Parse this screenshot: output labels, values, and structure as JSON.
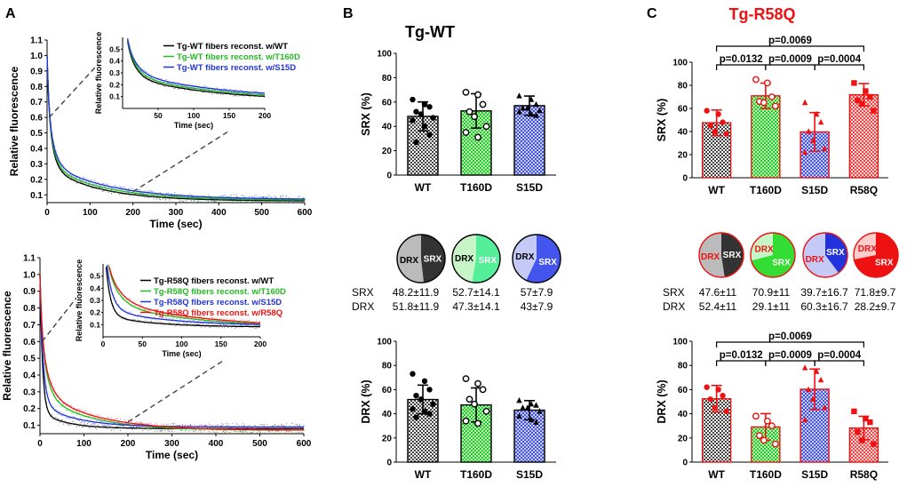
{
  "panels": {
    "a": {
      "letter": "A"
    },
    "b": {
      "letter": "B",
      "title": "Tg-WT"
    },
    "c": {
      "letter": "C",
      "title": "Tg-R58Q"
    }
  },
  "colors": {
    "wt": "#000000",
    "t160d": "#22bb22",
    "s15d": "#2233dd",
    "r58q": "#ee1111",
    "wt_fill": "#888888",
    "t160d_fill": "#66ee66",
    "s15d_fill": "#6677ee",
    "r58q_fill": "#ee6666"
  },
  "pie_labels": {
    "srx": "SRX",
    "drx": "DRX"
  },
  "table_row_labels": {
    "srx": "SRX",
    "drx": "DRX"
  },
  "tables": {
    "b": {
      "srx": [
        "48.2±11.9",
        "52.7±14.1",
        "57±7.9"
      ],
      "drx": [
        "51.8±11.9",
        "47.3±14.1",
        "43±7.9"
      ]
    },
    "c": {
      "srx": [
        "47.6±11",
        "70.9±11",
        "39.7±16.7",
        "71.8±9.7"
      ],
      "drx": [
        "52.4±11",
        "29.1±11",
        "60.3±16.7",
        "28.2±9.7"
      ]
    }
  },
  "chart_data": [
    {
      "id": "A-top",
      "type": "line",
      "title": "",
      "xlabel": "Time (sec)",
      "ylabel": "Relative fluorescence",
      "xlim": [
        0,
        600
      ],
      "ylim": [
        0.05,
        1.1
      ],
      "xticks": [
        0,
        100,
        200,
        300,
        400,
        500,
        600
      ],
      "yticks": [
        0.1,
        0.2,
        0.3,
        0.4,
        0.5,
        0.6,
        0.7,
        0.8,
        0.9,
        1.0,
        1.1
      ],
      "series": [
        {
          "name": "Tg-WT fibers reconst. w/WT",
          "color": "#000000",
          "plateau": 0.06,
          "fast_amp": 0.45,
          "fast_tau": 12,
          "slow_tau": 120
        },
        {
          "name": "Tg-WT fibers reconst. w/T160D",
          "color": "#22bb22",
          "plateau": 0.065,
          "fast_amp": 0.43,
          "fast_tau": 13,
          "slow_tau": 130
        },
        {
          "name": "Tg-WT fibers reconst. w/S15D",
          "color": "#2233dd",
          "plateau": 0.07,
          "fast_amp": 0.4,
          "fast_tau": 14,
          "slow_tau": 140
        }
      ],
      "inset": {
        "xlabel": "Time (sec)",
        "ylabel": "Relative fluorescence",
        "xlim": [
          0,
          200
        ],
        "ylim": [
          0,
          0.6
        ],
        "xticks": [
          50,
          100,
          150,
          200
        ],
        "yticks": [
          0.1,
          0.2,
          0.3,
          0.4,
          0.5
        ]
      }
    },
    {
      "id": "A-bottom",
      "type": "line",
      "title": "",
      "xlabel": "Time (sec)",
      "ylabel": "Relative fluorescence",
      "xlim": [
        0,
        600
      ],
      "ylim": [
        0.05,
        1.1
      ],
      "xticks": [
        0,
        100,
        200,
        300,
        400,
        500,
        600
      ],
      "yticks": [
        0.1,
        0.2,
        0.3,
        0.4,
        0.5,
        0.6,
        0.7,
        0.8,
        0.9,
        1.0,
        1.1
      ],
      "series": [
        {
          "name": "Tg-R58Q fibers reconst. w/WT",
          "color": "#000000",
          "plateau": 0.08,
          "fast_amp": 0.7,
          "fast_tau": 6,
          "slow_tau": 60
        },
        {
          "name": "Tg-R58Q fibers reconst. w/T160D",
          "color": "#22bb22",
          "plateau": 0.07,
          "fast_amp": 0.45,
          "fast_tau": 14,
          "slow_tau": 110
        },
        {
          "name": "Tg-R58Q fibers reconst. w/S15D",
          "color": "#2233dd",
          "plateau": 0.09,
          "fast_amp": 0.6,
          "fast_tau": 8,
          "slow_tau": 80
        },
        {
          "name": "Tg-R58Q fibers reconst. w/R58Q",
          "color": "#ee1111",
          "plateau": 0.07,
          "fast_amp": 0.4,
          "fast_tau": 16,
          "slow_tau": 120
        }
      ],
      "inset": {
        "xlabel": "Time (sec)",
        "ylabel": "Relative fluorescence",
        "xlim": [
          0,
          200
        ],
        "ylim": [
          0,
          0.6
        ],
        "xticks": [
          0,
          50,
          100,
          150,
          200
        ],
        "yticks": [
          0.1,
          0.2,
          0.3,
          0.4,
          0.5
        ]
      }
    },
    {
      "id": "B-SRX",
      "type": "bar",
      "ylabel": "SRX (%)",
      "ylim": [
        0,
        100
      ],
      "yticks": [
        0,
        20,
        40,
        60,
        80,
        100
      ],
      "categories": [
        "WT",
        "T160D",
        "S15D"
      ],
      "values": [
        48.2,
        52.7,
        57
      ],
      "errors": [
        11.9,
        14.1,
        7.9
      ],
      "points": [
        [
          62,
          58,
          56,
          52,
          50,
          47,
          45,
          40,
          33,
          27
        ],
        [
          68,
          66,
          58,
          52,
          48,
          40,
          35,
          31
        ],
        [
          65,
          62,
          58,
          55,
          55,
          53,
          52,
          50,
          49
        ]
      ],
      "markers": [
        "circle-filled",
        "circle-open",
        "triangle"
      ]
    },
    {
      "id": "B-DRX",
      "type": "bar",
      "ylabel": "DRX (%)",
      "ylim": [
        0,
        100
      ],
      "yticks": [
        0,
        20,
        40,
        60,
        80,
        100
      ],
      "categories": [
        "WT",
        "T160D",
        "S15D"
      ],
      "values": [
        51.8,
        47.3,
        43
      ],
      "errors": [
        11.9,
        14.1,
        7.9
      ],
      "points": [
        [
          73,
          67,
          60,
          55,
          52,
          48,
          44,
          42,
          40,
          37
        ],
        [
          69,
          65,
          60,
          52,
          48,
          42,
          34,
          32
        ],
        [
          51,
          48,
          47,
          45,
          45,
          42,
          38,
          35,
          33
        ]
      ],
      "markers": [
        "circle-filled",
        "circle-open",
        "triangle"
      ]
    },
    {
      "id": "C-SRX",
      "type": "bar",
      "ylabel": "SRX (%)",
      "ylim": [
        0,
        100
      ],
      "yticks": [
        0,
        20,
        40,
        60,
        80,
        100
      ],
      "categories": [
        "WT",
        "T160D",
        "S15D",
        "R58Q"
      ],
      "values": [
        47.6,
        70.9,
        39.7,
        71.8
      ],
      "errors": [
        11,
        11,
        16.7,
        9.7
      ],
      "points": [
        [
          58,
          55,
          48,
          45,
          40,
          38
        ],
        [
          85,
          82,
          70,
          66,
          65,
          62
        ],
        [
          65,
          55,
          48,
          40,
          32,
          25,
          22
        ],
        [
          82,
          75,
          70,
          67,
          64,
          58
        ]
      ],
      "markers": [
        "circle-filled",
        "circle-open",
        "triangle",
        "square"
      ],
      "significance": [
        {
          "from": 0,
          "to": 3,
          "label": "p=0.0069",
          "level": 0
        },
        {
          "from": 0,
          "to": 1,
          "label": "p=0.0132",
          "level": 1
        },
        {
          "from": 1,
          "to": 2,
          "label": "p=0.0009",
          "level": 1
        },
        {
          "from": 2,
          "to": 3,
          "label": "p=0.0004",
          "level": 1
        }
      ]
    },
    {
      "id": "C-DRX",
      "type": "bar",
      "ylabel": "DRX (%)",
      "ylim": [
        0,
        100
      ],
      "yticks": [
        0,
        20,
        40,
        60,
        80,
        100
      ],
      "categories": [
        "WT",
        "T160D",
        "S15D",
        "R58Q"
      ],
      "values": [
        52.4,
        29.1,
        60.3,
        28.2
      ],
      "errors": [
        11,
        11,
        16.7,
        9.7
      ],
      "points": [
        [
          62,
          60,
          55,
          52,
          45,
          42
        ],
        [
          38,
          34,
          30,
          22,
          18,
          15
        ],
        [
          78,
          75,
          68,
          60,
          52,
          45,
          35
        ],
        [
          42,
          36,
          33,
          25,
          18,
          15
        ]
      ],
      "markers": [
        "circle-filled",
        "circle-open",
        "triangle",
        "square"
      ],
      "significance": [
        {
          "from": 0,
          "to": 3,
          "label": "p=0.0069",
          "level": 0
        },
        {
          "from": 0,
          "to": 1,
          "label": "p=0.0132",
          "level": 1
        },
        {
          "from": 1,
          "to": 2,
          "label": "p=0.0009",
          "level": 1
        },
        {
          "from": 2,
          "to": 3,
          "label": "p=0.0004",
          "level": 1
        }
      ]
    },
    {
      "id": "B-pies",
      "type": "pie",
      "categories": [
        "WT",
        "T160D",
        "S15D"
      ],
      "srx": [
        48.2,
        52.7,
        57
      ],
      "drx": [
        51.8,
        47.3,
        43
      ]
    },
    {
      "id": "C-pies",
      "type": "pie",
      "categories": [
        "WT",
        "T160D",
        "S15D",
        "R58Q"
      ],
      "srx": [
        47.6,
        70.9,
        39.7,
        71.8
      ],
      "drx": [
        52.4,
        29.1,
        60.3,
        28.2
      ]
    }
  ]
}
